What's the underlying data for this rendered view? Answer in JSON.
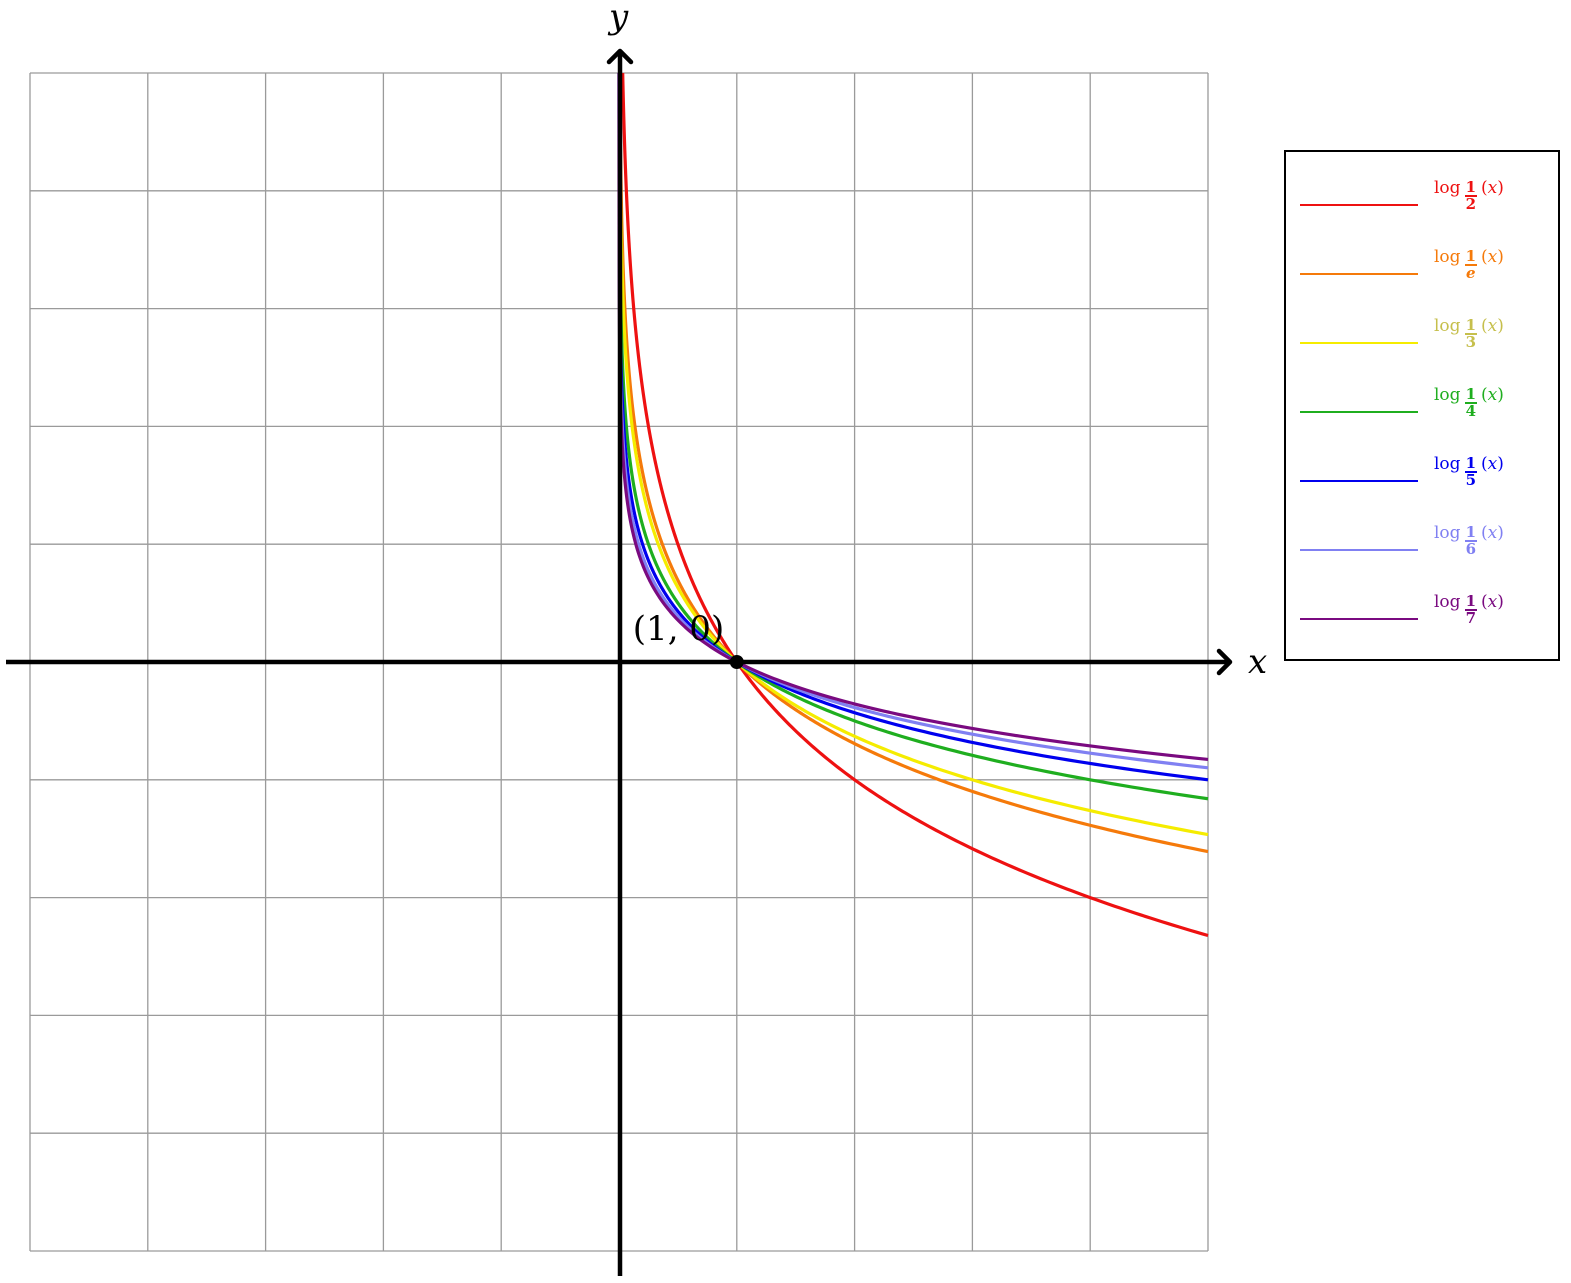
{
  "chart_data": {
    "type": "line",
    "xlabel": "x",
    "ylabel": "y",
    "xlim": [
      -5,
      5
    ],
    "ylim": [
      -5,
      5
    ],
    "grid": true,
    "legend_position": "right",
    "point": {
      "x": 1,
      "y": 0,
      "label": "(1, 0)"
    },
    "series": [
      {
        "name": "log_{1/2}(x)",
        "base": 0.5,
        "base_label": "2",
        "color": "#ee1111"
      },
      {
        "name": "log_{1/e}(x)",
        "base": 0.36787944117,
        "base_label": "e",
        "color": "#f57a0a"
      },
      {
        "name": "log_{1/3}(x)",
        "base": 0.33333333333,
        "base_label": "3",
        "color": "#f5ec00"
      },
      {
        "name": "log_{1/4}(x)",
        "base": 0.25,
        "base_label": "4",
        "color": "#1fae1f"
      },
      {
        "name": "log_{1/5}(x)",
        "base": 0.2,
        "base_label": "5",
        "color": "#0000ee"
      },
      {
        "name": "log_{1/6}(x)",
        "base": 0.16666666667,
        "base_label": "6",
        "color": "#8080f2"
      },
      {
        "name": "log_{1/7}(x)",
        "base": 0.14285714286,
        "base_label": "7",
        "color": "#7a0a80"
      }
    ],
    "legend_text": {
      "fn": "log",
      "num": "1",
      "arg_open": "(",
      "arg_var": "x",
      "arg_close": ")"
    },
    "label_colors": {
      "log_{1/3}(x)": "#c6bf4c",
      "log_{1/6}(x)": "#8080f2"
    }
  }
}
